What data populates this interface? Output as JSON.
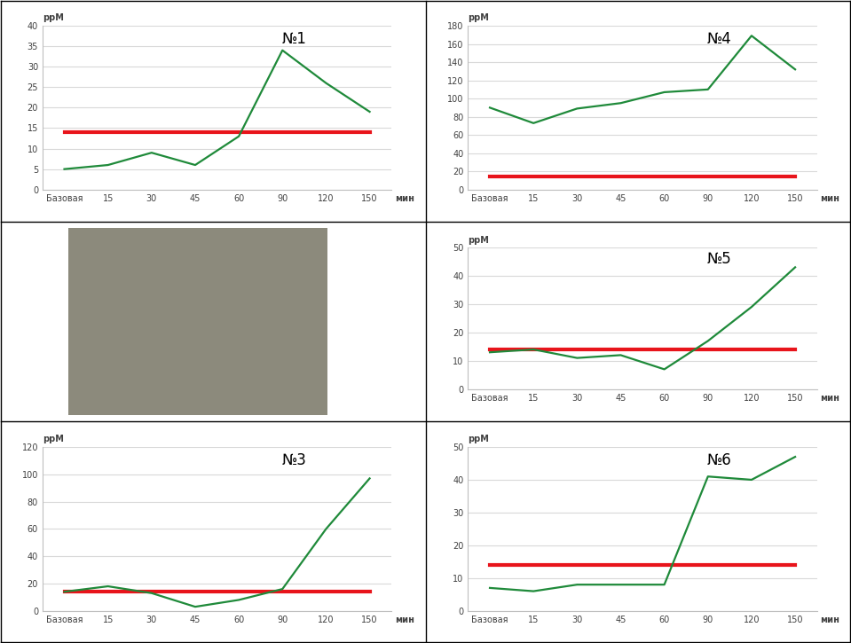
{
  "chart_data": [
    {
      "type": "line",
      "title": "№1",
      "y_label": "ppM",
      "x_label": "мин",
      "categories": [
        "Базовая",
        "15",
        "30",
        "45",
        "60",
        "90",
        "120",
        "150"
      ],
      "series": [
        {
          "color": "#1f8a3a",
          "values": [
            5,
            6,
            9,
            6,
            13,
            34,
            26,
            19
          ]
        },
        {
          "color": "#e8141b",
          "values": [
            14,
            14,
            14,
            14,
            14,
            14,
            14,
            14
          ]
        }
      ],
      "ylim": [
        0,
        40
      ],
      "yticks": [
        0,
        5,
        10,
        15,
        20,
        25,
        30,
        35,
        40
      ],
      "grid": true
    },
    {
      "type": "line",
      "title": "№4",
      "y_label": "ppM",
      "x_label": "мин",
      "categories": [
        "Базовая",
        "15",
        "30",
        "45",
        "60",
        "90",
        "120",
        "150"
      ],
      "series": [
        {
          "color": "#1f8a3a",
          "values": [
            90,
            73,
            89,
            95,
            107,
            110,
            169,
            132
          ]
        },
        {
          "color": "#e8141b",
          "values": [
            14,
            14,
            14,
            14,
            14,
            14,
            14,
            14
          ]
        }
      ],
      "ylim": [
        0,
        180
      ],
      "yticks": [
        0,
        20,
        40,
        60,
        80,
        100,
        120,
        140,
        160,
        180
      ],
      "grid": true
    },
    {
      "type": "line",
      "title": "№5",
      "y_label": "ppM",
      "x_label": "мин",
      "categories": [
        "Базовая",
        "15",
        "30",
        "45",
        "60",
        "90",
        "120",
        "150"
      ],
      "series": [
        {
          "color": "#1f8a3a",
          "values": [
            13,
            14,
            11,
            12,
            7,
            17,
            29,
            43
          ]
        },
        {
          "color": "#e8141b",
          "values": [
            14,
            14,
            14,
            14,
            14,
            14,
            14,
            14
          ]
        }
      ],
      "ylim": [
        0,
        50
      ],
      "yticks": [
        0,
        10,
        20,
        30,
        40,
        50
      ],
      "grid": true
    },
    {
      "type": "line",
      "title": "№3",
      "y_label": "ppM",
      "x_label": "мин",
      "categories": [
        "Базовая",
        "15",
        "30",
        "45",
        "60",
        "90",
        "120",
        "150"
      ],
      "series": [
        {
          "color": "#1f8a3a",
          "values": [
            14,
            18,
            13,
            3,
            8,
            16,
            60,
            97
          ]
        },
        {
          "color": "#e8141b",
          "values": [
            14,
            14,
            14,
            14,
            14,
            14,
            14,
            14
          ]
        }
      ],
      "ylim": [
        0,
        120
      ],
      "yticks": [
        0,
        20,
        40,
        60,
        80,
        100,
        120
      ],
      "grid": true
    },
    {
      "type": "line",
      "title": "№6",
      "y_label": "ppM",
      "x_label": "мин",
      "categories": [
        "Базовая",
        "15",
        "30",
        "45",
        "60",
        "90",
        "120",
        "150"
      ],
      "series": [
        {
          "color": "#1f8a3a",
          "values": [
            7,
            6,
            8,
            8,
            8,
            41,
            40,
            47
          ]
        },
        {
          "color": "#e8141b",
          "values": [
            14,
            14,
            14,
            14,
            14,
            14,
            14,
            14
          ]
        }
      ],
      "ylim": [
        0,
        50
      ],
      "yticks": [
        0,
        10,
        20,
        30,
        40,
        50
      ],
      "grid": true
    }
  ]
}
